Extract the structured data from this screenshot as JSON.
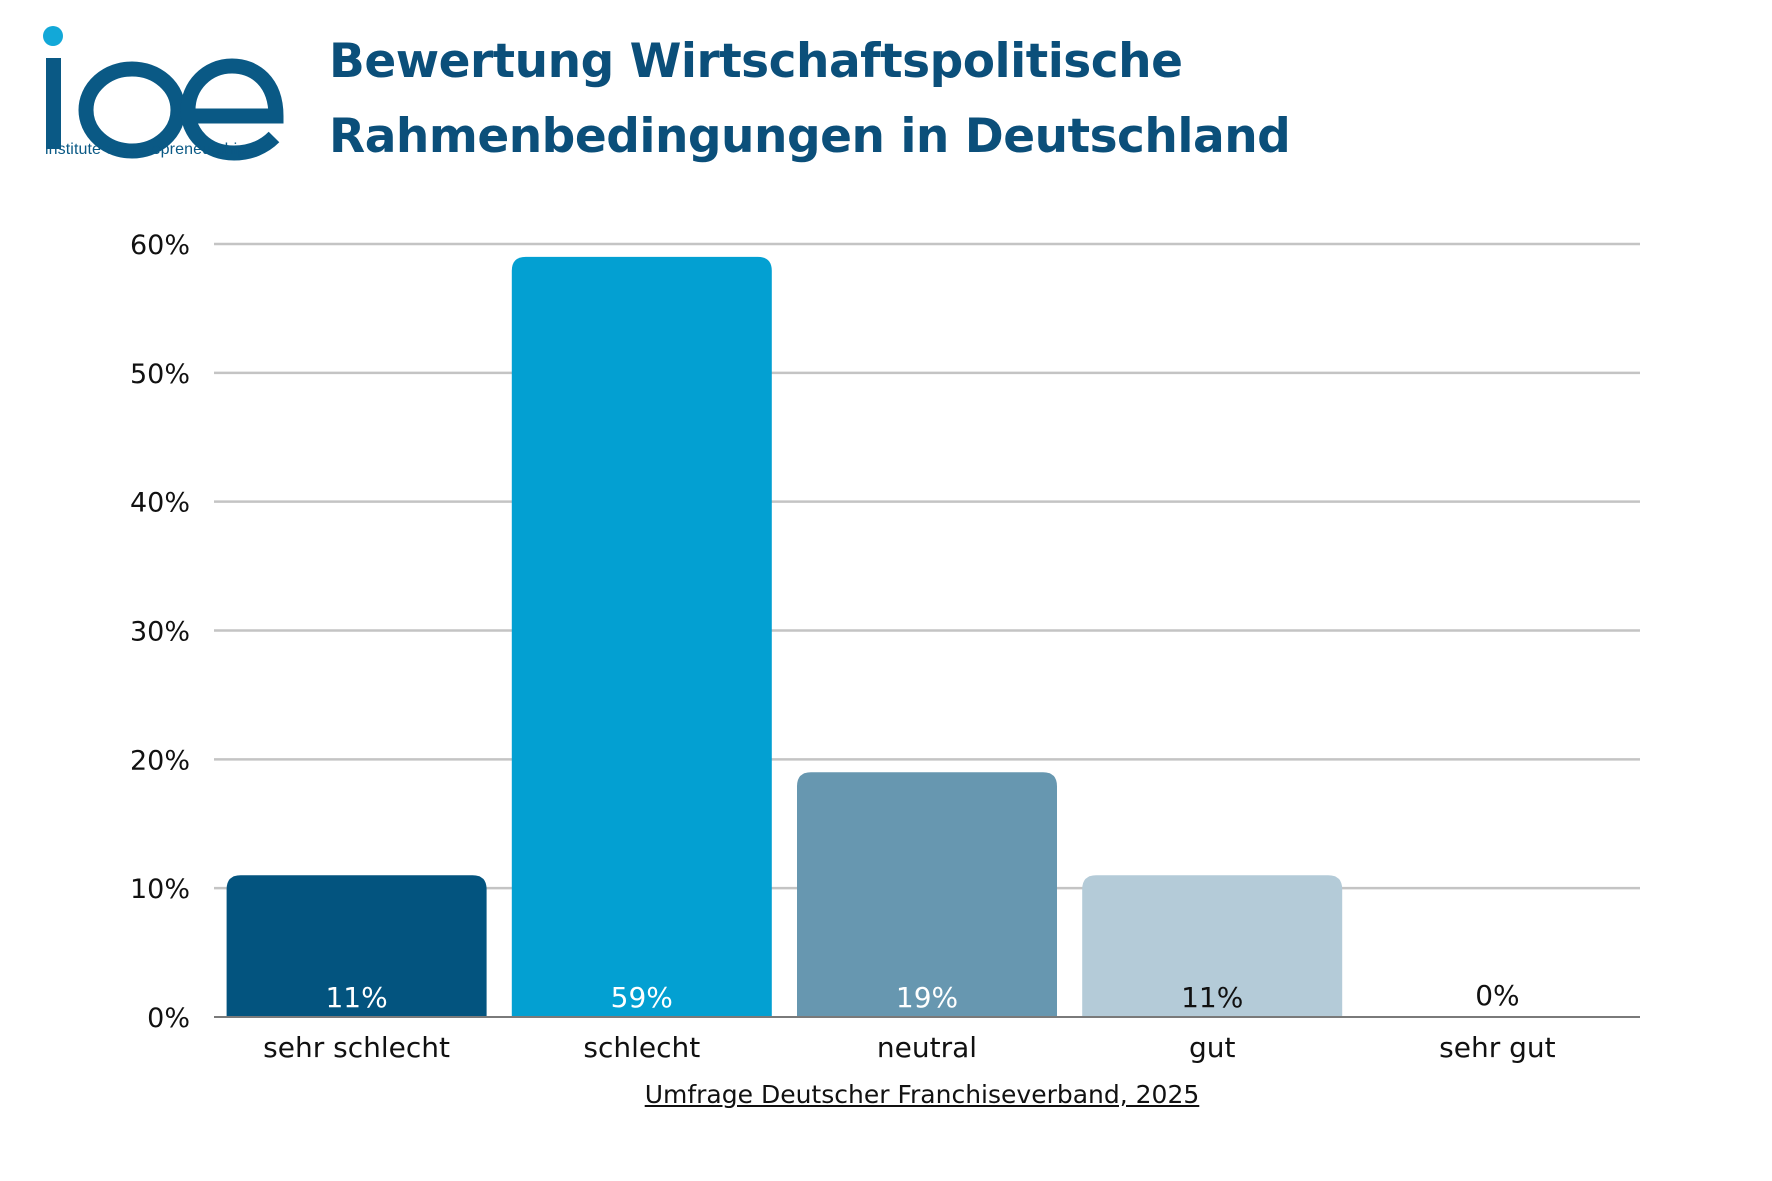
{
  "logo": {
    "text": "ioe",
    "tagline": "institute of entrepreneurship",
    "colors": {
      "primary": "#0a5985",
      "dot": "#12a8d8"
    }
  },
  "chart_data": {
    "type": "bar",
    "title_lines": [
      "Bewertung Wirtschaftspolitische",
      "Rahmenbedingungen in Deutschland"
    ],
    "categories": [
      "sehr schlecht",
      "schlecht",
      "neutral",
      "gut",
      "sehr gut"
    ],
    "values": [
      11,
      59,
      19,
      11,
      0
    ],
    "data_labels": [
      "11%",
      "59%",
      "19%",
      "11%",
      "0%"
    ],
    "bar_colors": [
      "#03547f",
      "#03a0d2",
      "#6797b0",
      "#b4cbd8",
      "#b4cbd8"
    ],
    "label_colors": [
      "#ffffff",
      "#ffffff",
      "#ffffff",
      "#111111",
      "#111111"
    ],
    "ylim": [
      0,
      60
    ],
    "yticks": [
      0,
      10,
      20,
      30,
      40,
      50,
      60
    ],
    "ytick_labels": [
      "0%",
      "10%",
      "20%",
      "30%",
      "40%",
      "50%",
      "60%"
    ],
    "grid": true,
    "xlabel": "",
    "ylabel": ""
  },
  "source": "Umfrage Deutscher Franchiseverband, 2025"
}
